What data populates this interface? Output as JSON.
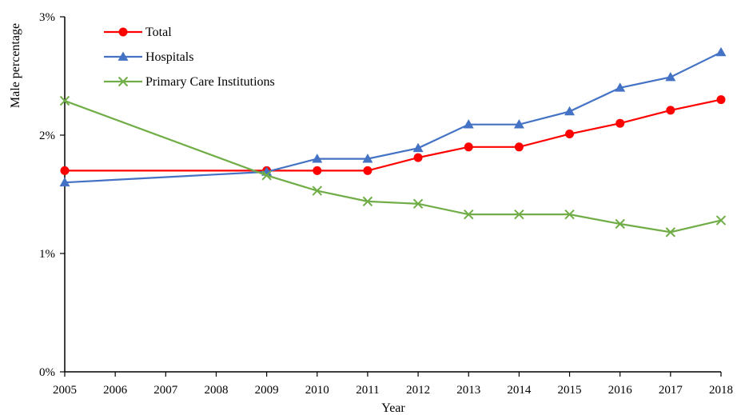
{
  "chart_data": {
    "type": "line",
    "xlabel": "Year",
    "ylabel": "Male percentage",
    "x": [
      2005,
      2006,
      2007,
      2008,
      2009,
      2010,
      2011,
      2012,
      2013,
      2014,
      2015,
      2016,
      2017,
      2018
    ],
    "x_tick_labels": [
      "2005",
      "2006",
      "2007",
      "2008",
      "2009",
      "2010",
      "2011",
      "2012",
      "2013",
      "2014",
      "2015",
      "2016",
      "2017",
      "2018"
    ],
    "ylim": [
      0,
      3
    ],
    "y_ticks": [
      0,
      1,
      2,
      3
    ],
    "y_tick_labels": [
      "0%",
      "1%",
      "2%",
      "3%"
    ],
    "grid": false,
    "legend_position": "top-left",
    "series": [
      {
        "name": "Total",
        "color": "#ff0000",
        "marker": "circle",
        "x": [
          2005,
          2009,
          2010,
          2011,
          2012,
          2013,
          2014,
          2015,
          2016,
          2017,
          2018
        ],
        "values": [
          1.7,
          1.7,
          1.7,
          1.7,
          1.81,
          1.9,
          1.9,
          2.01,
          2.1,
          2.21,
          2.3
        ]
      },
      {
        "name": "Hospitals",
        "color": "#4472c4",
        "marker": "triangle",
        "x": [
          2005,
          2009,
          2010,
          2011,
          2012,
          2013,
          2014,
          2015,
          2016,
          2017,
          2018
        ],
        "values": [
          1.6,
          1.69,
          1.8,
          1.8,
          1.89,
          2.09,
          2.09,
          2.2,
          2.4,
          2.49,
          2.7
        ]
      },
      {
        "name": "Primary Care Institutions",
        "color": "#70ad47",
        "marker": "x",
        "x": [
          2005,
          2009,
          2010,
          2011,
          2012,
          2013,
          2014,
          2015,
          2016,
          2017,
          2018
        ],
        "values": [
          2.29,
          1.66,
          1.53,
          1.44,
          1.42,
          1.33,
          1.33,
          1.33,
          1.25,
          1.18,
          1.28
        ]
      }
    ]
  }
}
